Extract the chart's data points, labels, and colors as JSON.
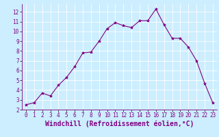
{
  "x": [
    0,
    1,
    2,
    3,
    4,
    5,
    6,
    7,
    8,
    9,
    10,
    11,
    12,
    13,
    14,
    15,
    16,
    17,
    18,
    19,
    20,
    21,
    22,
    23
  ],
  "y": [
    2.5,
    2.7,
    3.7,
    3.4,
    4.5,
    5.3,
    6.4,
    7.8,
    7.9,
    9.0,
    10.3,
    10.9,
    10.6,
    10.4,
    11.1,
    11.1,
    12.3,
    10.7,
    9.3,
    9.3,
    8.4,
    7.0,
    4.7,
    2.7
  ],
  "line_color": "#800080",
  "marker": "*",
  "marker_size": 3,
  "bg_color": "#cceeff",
  "grid_color": "#ffffff",
  "xlabel": "Windchill (Refroidissement éolien,°C)",
  "xlim": [
    -0.5,
    23.5
  ],
  "ylim": [
    2,
    12.8
  ],
  "yticks": [
    2,
    3,
    4,
    5,
    6,
    7,
    8,
    9,
    10,
    11,
    12
  ],
  "xticks": [
    0,
    1,
    2,
    3,
    4,
    5,
    6,
    7,
    8,
    9,
    10,
    11,
    12,
    13,
    14,
    15,
    16,
    17,
    18,
    19,
    20,
    21,
    22,
    23
  ],
  "tick_color": "#800080",
  "tick_label_fontsize": 5.5,
  "xlabel_fontsize": 7.0
}
